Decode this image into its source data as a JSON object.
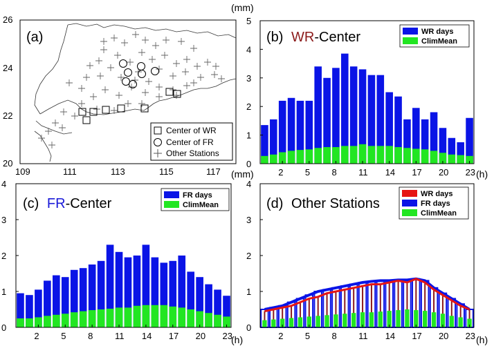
{
  "map": {
    "label": "(a)",
    "x_ticks": [
      "109",
      "111",
      "113",
      "115",
      "117"
    ],
    "y_ticks": [
      "26",
      "24",
      "22",
      "20"
    ],
    "legend": [
      "Center of WR",
      "Center of  FR",
      "Other Stations"
    ]
  },
  "chart_data": [
    {
      "type": "bar",
      "label": "(b)",
      "title_parts": [
        "WR",
        "-Center"
      ],
      "title_colors": [
        "#8b1a1a",
        "#000000"
      ],
      "unit_top": "(mm)",
      "unit_right": "(h)",
      "ylim": [
        0,
        5
      ],
      "y_ticks": [
        "0",
        "1",
        "2",
        "3",
        "4",
        "5"
      ],
      "x_ticks": [
        "2",
        "5",
        "8",
        "11",
        "14",
        "17",
        "20",
        "23"
      ],
      "x_tick_values": [
        2,
        5,
        8,
        11,
        14,
        17,
        20,
        23
      ],
      "categories": [
        0,
        1,
        2,
        3,
        4,
        5,
        6,
        7,
        8,
        9,
        10,
        11,
        12,
        13,
        14,
        15,
        16,
        17,
        18,
        19,
        20,
        21,
        22,
        23
      ],
      "legend_position": "top-right",
      "series": [
        {
          "name": "WR days",
          "color": "#0a14e6",
          "values": [
            1.35,
            1.55,
            2.2,
            2.3,
            2.2,
            2.2,
            3.4,
            3.0,
            3.35,
            3.85,
            3.4,
            3.3,
            3.1,
            3.1,
            2.5,
            2.35,
            1.55,
            1.95,
            1.55,
            1.8,
            1.25,
            0.9,
            0.75,
            1.6
          ]
        },
        {
          "name": "ClimMean",
          "color": "#22e622",
          "values": [
            0.27,
            0.32,
            0.4,
            0.45,
            0.48,
            0.5,
            0.55,
            0.58,
            0.58,
            0.62,
            0.62,
            0.68,
            0.62,
            0.62,
            0.62,
            0.58,
            0.55,
            0.52,
            0.5,
            0.45,
            0.38,
            0.32,
            0.3,
            0.27
          ]
        }
      ]
    },
    {
      "type": "bar",
      "label": "(c)",
      "title_parts": [
        "FR",
        "-Center"
      ],
      "title_colors": [
        "#1a1ad8",
        "#000000"
      ],
      "unit_top": "(mm)",
      "unit_right": "(h)",
      "ylim": [
        0,
        4
      ],
      "y_ticks": [
        "0",
        "1",
        "2",
        "3",
        "4"
      ],
      "x_ticks": [
        "2",
        "5",
        "8",
        "11",
        "14",
        "17",
        "20",
        "23"
      ],
      "x_tick_values": [
        2,
        5,
        8,
        11,
        14,
        17,
        20,
        23
      ],
      "categories": [
        0,
        1,
        2,
        3,
        4,
        5,
        6,
        7,
        8,
        9,
        10,
        11,
        12,
        13,
        14,
        15,
        16,
        17,
        18,
        19,
        20,
        21,
        22,
        23
      ],
      "legend_position": "top-right",
      "series": [
        {
          "name": "FR days",
          "color": "#0a14e6",
          "values": [
            0.95,
            0.9,
            1.05,
            1.3,
            1.45,
            1.4,
            1.6,
            1.65,
            1.75,
            1.85,
            2.3,
            2.1,
            1.95,
            2.0,
            2.3,
            1.95,
            1.8,
            1.85,
            2.0,
            1.55,
            1.4,
            1.2,
            1.05,
            0.88
          ]
        },
        {
          "name": "ClimMean",
          "color": "#22e622",
          "values": [
            0.25,
            0.25,
            0.28,
            0.32,
            0.35,
            0.38,
            0.42,
            0.45,
            0.48,
            0.5,
            0.52,
            0.55,
            0.55,
            0.6,
            0.62,
            0.62,
            0.62,
            0.58,
            0.55,
            0.5,
            0.45,
            0.4,
            0.35,
            0.3
          ]
        }
      ]
    },
    {
      "type": "bar",
      "label": "(d)",
      "title_parts": [
        "Other Stations"
      ],
      "title_colors": [
        "#000000"
      ],
      "unit_right": "(h)",
      "ylim": [
        0,
        4
      ],
      "y_ticks": [
        "0",
        "1",
        "2",
        "3",
        "4"
      ],
      "x_ticks": [
        "2",
        "5",
        "8",
        "11",
        "14",
        "17",
        "20",
        "23"
      ],
      "x_tick_values": [
        2,
        5,
        8,
        11,
        14,
        17,
        20,
        23
      ],
      "categories": [
        0,
        1,
        2,
        3,
        4,
        5,
        6,
        7,
        8,
        9,
        10,
        11,
        12,
        13,
        14,
        15,
        16,
        17,
        18,
        19,
        20,
        21,
        22,
        23
      ],
      "legend_position": "top-right",
      "series": [
        {
          "name": "WR days",
          "color": "#e61414",
          "values": [
            0.45,
            0.5,
            0.55,
            0.6,
            0.7,
            0.8,
            0.85,
            0.95,
            1.0,
            1.05,
            1.1,
            1.15,
            1.2,
            1.2,
            1.25,
            1.3,
            1.25,
            1.35,
            1.25,
            1.05,
            0.9,
            0.75,
            0.6,
            0.5
          ]
        },
        {
          "name": "FR  days",
          "color": "#0a14e6",
          "values": [
            0.5,
            0.55,
            0.6,
            0.7,
            0.8,
            0.9,
            1.0,
            1.05,
            1.1,
            1.15,
            1.2,
            1.25,
            1.28,
            1.3,
            1.3,
            1.32,
            1.32,
            1.35,
            1.3,
            1.1,
            0.95,
            0.8,
            0.65,
            0.5
          ]
        },
        {
          "name": "ClimMean",
          "color": "#22e622",
          "values": [
            0.2,
            0.22,
            0.24,
            0.26,
            0.28,
            0.3,
            0.32,
            0.34,
            0.36,
            0.38,
            0.4,
            0.42,
            0.42,
            0.44,
            0.46,
            0.48,
            0.5,
            0.48,
            0.46,
            0.42,
            0.38,
            0.32,
            0.28,
            0.24
          ]
        }
      ]
    }
  ]
}
